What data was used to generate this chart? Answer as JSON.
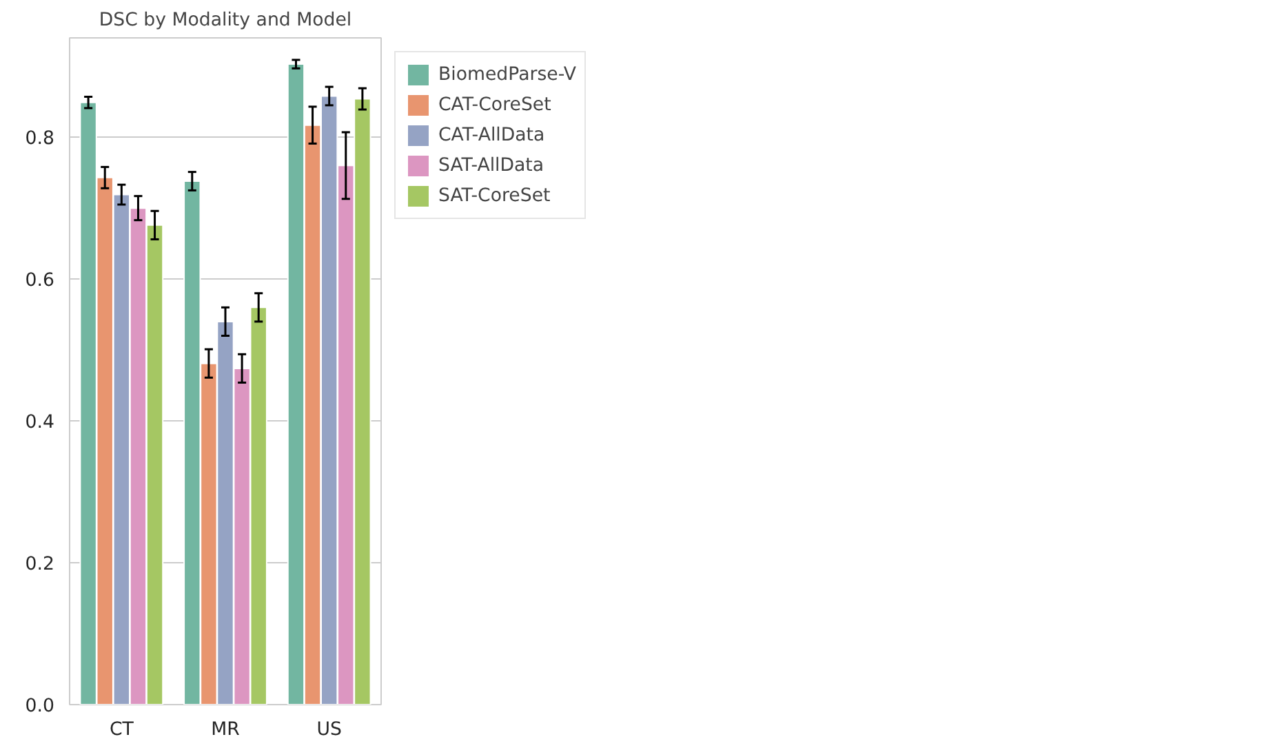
{
  "chart_data": {
    "type": "bar",
    "title": "DSC by Modality and Model",
    "categories": [
      "CT",
      "MR",
      "US"
    ],
    "series": [
      {
        "name": "BiomedParse-V",
        "color": "#72b6a1",
        "values": [
          0.849,
          0.738,
          0.903
        ],
        "errors": [
          0.008,
          0.013,
          0.006
        ]
      },
      {
        "name": "CAT-CoreSet",
        "color": "#e8956f",
        "values": [
          0.743,
          0.481,
          0.817
        ],
        "errors": [
          0.015,
          0.02,
          0.026
        ]
      },
      {
        "name": "CAT-AllData",
        "color": "#95a3c4",
        "values": [
          0.719,
          0.54,
          0.858
        ],
        "errors": [
          0.014,
          0.02,
          0.013
        ]
      },
      {
        "name": "SAT-AllData",
        "color": "#dc96c1",
        "values": [
          0.7,
          0.474,
          0.76
        ],
        "errors": [
          0.017,
          0.02,
          0.047
        ]
      },
      {
        "name": "SAT-CoreSet",
        "color": "#a5c763",
        "values": [
          0.676,
          0.56,
          0.854
        ],
        "errors": [
          0.02,
          0.02,
          0.015
        ]
      }
    ],
    "ylim": [
      0,
      0.94
    ],
    "yticks": [
      {
        "value": 0,
        "label": "0.0"
      },
      {
        "value": 0.2,
        "label": "0.2"
      },
      {
        "value": 0.4,
        "label": "0.4"
      },
      {
        "value": 0.6,
        "label": "0.6"
      },
      {
        "value": 0.8,
        "label": "0.8"
      }
    ],
    "grid": "y",
    "legend": "top right"
  }
}
